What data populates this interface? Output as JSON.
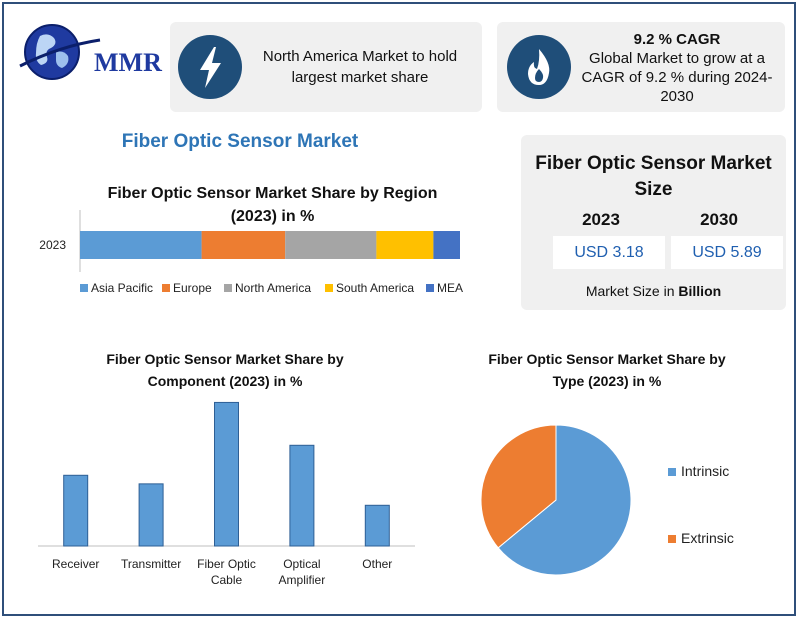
{
  "brand": {
    "logo_text": "MMR"
  },
  "info_boxes": [
    {
      "icon": "lightning-icon",
      "text_line1": "North America Market to hold",
      "text_line2": "largest market share"
    },
    {
      "icon": "flame-icon",
      "title": "9.2 % CAGR",
      "text_line1": "Global Market to grow at a",
      "text_line2": "CAGR of 9.2 % during 2024-",
      "text_line3": "2030"
    }
  ],
  "main_title": "Fiber Optic Sensor Market",
  "market_size": {
    "title_line1": "Fiber Optic Sensor Market",
    "title_line2": "Size",
    "years": [
      "2023",
      "2030"
    ],
    "values": [
      "USD 3.18",
      "USD 5.89"
    ],
    "unit_prefix": "Market Size in ",
    "unit_bold": "Billion"
  },
  "colors": {
    "blue": "#5b9bd5",
    "orange": "#ed7d31",
    "gray": "#a5a5a5",
    "yellow": "#ffc000",
    "darkblue": "#4472c4",
    "title_blue": "#2e75b6",
    "icon_navy": "#1f4e79"
  },
  "chart_data": [
    {
      "type": "bar",
      "orientation": "horizontal-stacked",
      "title_line1": "Fiber Optic Sensor Market Share by Region",
      "title_line2": "(2023) in %",
      "categories": [
        "2023"
      ],
      "series": [
        {
          "name": "Asia Pacific",
          "values": [
            32
          ]
        },
        {
          "name": "Europe",
          "values": [
            22
          ]
        },
        {
          "name": "North America",
          "values": [
            24
          ]
        },
        {
          "name": "South America",
          "values": [
            15
          ]
        },
        {
          "name": "MEA",
          "values": [
            7
          ]
        }
      ],
      "xlim": [
        0,
        100
      ],
      "legend": "bottom",
      "grid": false
    },
    {
      "type": "bar",
      "title_line1": "Fiber Optic Sensor Market Share by",
      "title_line2": "Component (2023) in %",
      "categories": [
        [
          "Receiver"
        ],
        [
          "Transmitter"
        ],
        [
          "Fiber Optic",
          "Cable"
        ],
        [
          "Optical",
          "Amplifier"
        ],
        [
          "Other"
        ]
      ],
      "values": [
        16.5,
        14.5,
        33.5,
        23.5,
        9.5
      ],
      "ylim": [
        0,
        35
      ],
      "grid": false
    },
    {
      "type": "pie",
      "title_line1": "Fiber Optic Sensor Market Share by",
      "title_line2": "Type (2023) in %",
      "labels": [
        "Intrinsic",
        "Extrinsic"
      ],
      "values": [
        64,
        36
      ],
      "legend": "right"
    }
  ]
}
